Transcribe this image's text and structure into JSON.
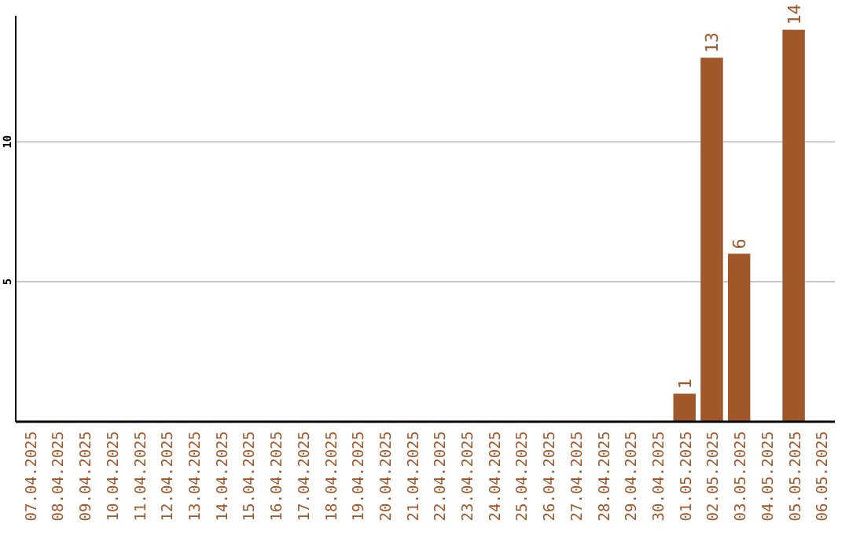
{
  "chart_data": {
    "type": "bar",
    "categories": [
      "07.04.2025",
      "08.04.2025",
      "09.04.2025",
      "10.04.2025",
      "11.04.2025",
      "12.04.2025",
      "13.04.2025",
      "14.04.2025",
      "15.04.2025",
      "16.04.2025",
      "17.04.2025",
      "18.04.2025",
      "19.04.2025",
      "20.04.2025",
      "21.04.2025",
      "22.04.2025",
      "23.04.2025",
      "24.04.2025",
      "25.04.2025",
      "26.04.2025",
      "27.04.2025",
      "28.04.2025",
      "29.04.2025",
      "30.04.2025",
      "01.05.2025",
      "02.05.2025",
      "03.05.2025",
      "04.05.2025",
      "05.05.2025",
      "06.05.2025"
    ],
    "values": [
      0,
      0,
      0,
      0,
      0,
      0,
      0,
      0,
      0,
      0,
      0,
      0,
      0,
      0,
      0,
      0,
      0,
      0,
      0,
      0,
      0,
      0,
      0,
      0,
      1,
      13,
      6,
      0,
      14,
      0
    ],
    "value_labels": [
      null,
      null,
      null,
      null,
      null,
      null,
      null,
      null,
      null,
      null,
      null,
      null,
      null,
      null,
      null,
      null,
      null,
      null,
      null,
      null,
      null,
      null,
      null,
      null,
      "1",
      "13",
      "6",
      null,
      "14",
      null
    ],
    "color": "#a0572a",
    "ylim": [
      0,
      14.5
    ],
    "yticks": [
      5,
      10
    ],
    "grid": "y"
  }
}
